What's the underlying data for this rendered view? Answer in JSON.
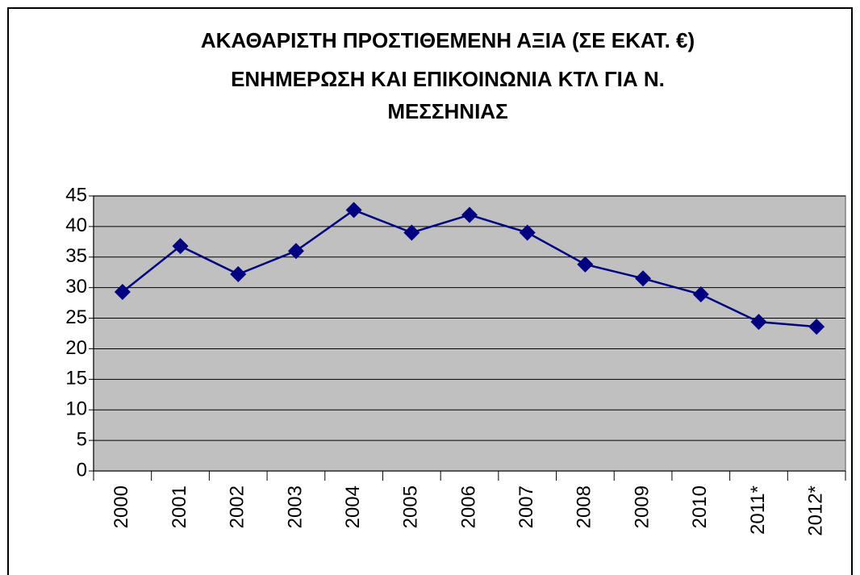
{
  "chart_data": {
    "type": "line",
    "title": [
      "ΑΚΑΘΑΡΙΣΤΗ ΠΡΟΣΤΙΘΕΜΕΝΗ ΑΞΙΑ (ΣΕ ΕΚΑΤ. €)",
      "ΕΝΗΜΕΡΩΣΗ ΚΑΙ ΕΠΙΚΟΙΝΩΝΙΑ ΚΤΛ ΓΙΑ Ν.",
      "ΜΕΣΣΗΝΙΑΣ"
    ],
    "categories": [
      "2000",
      "2001",
      "2002",
      "2003",
      "2004",
      "2005",
      "2006",
      "2007",
      "2008",
      "2009",
      "2010",
      "2011*",
      "2012*"
    ],
    "values": [
      29.3,
      36.8,
      32.2,
      36.0,
      42.7,
      39.0,
      41.9,
      39.0,
      33.8,
      31.5,
      28.9,
      24.4,
      23.6
    ],
    "color": "#000080",
    "ylim": [
      0,
      45
    ],
    "yticks": [
      0,
      5,
      10,
      15,
      20,
      25,
      30,
      35,
      40,
      45
    ],
    "grid": true
  }
}
